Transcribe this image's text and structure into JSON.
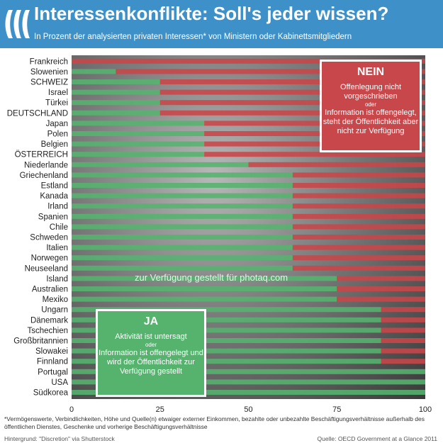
{
  "header": {
    "title": "Interessenkonflikte: Soll's jeder wissen?",
    "subtitle": "In Prozent der analysierten privaten Interessen* von Ministern oder Kabinettsmitgliedern"
  },
  "colors": {
    "ja": "#55b36e",
    "nein": "#c8474a",
    "header": "#3e91c8"
  },
  "legend": {
    "nein": {
      "title": "NEIN",
      "line1": "Offenlegung nicht vorgeschrieben",
      "oder": "oder",
      "line2": "Information ist offengelegt, steht der Öffentlichkeit aber nicht zur Verfügung"
    },
    "ja": {
      "title": "JA",
      "line1": "Aktivität ist untersagt",
      "oder": "oder",
      "line2": "Information ist offengelegt und wird der Öffentlichkeit zur Verfügung gestellt"
    }
  },
  "watermark": "zur Verfügung gestellt für photaq.com",
  "footnote": "*Vermögenswerte, Verbindlichkeiten, Höhe und Quelle(n) etwaiger externer Einkommen, bezahlte oder unbezahlte Beschäftigungsverhältnisse außerhalb des öffentlichen Dienstes, Geschenke und vorherige Beschäftigungsverhältnisse",
  "credit_background": "Hintergrund: \"Discretion\" via Shutterstock",
  "credit_source": "Quelle: OECD Government at a Glance 2011",
  "chart_data": {
    "type": "bar",
    "orientation": "horizontal",
    "stacked": true,
    "xlim": [
      0,
      100
    ],
    "xticks": [
      0,
      25,
      50,
      75,
      100
    ],
    "categories": [
      "Frankreich",
      "Slowenien",
      "SCHWEIZ",
      "Israel",
      "Türkei",
      "DEUTSCHLAND",
      "Japan",
      "Polen",
      "Belgien",
      "ÖSTERREICH",
      "Niederlande",
      "Griechenland",
      "Estland",
      "Kanada",
      "Irland",
      "Spanien",
      "Chile",
      "Schweden",
      "Italien",
      "Norwegen",
      "Neuseeland",
      "Island",
      "Australien",
      "Mexiko",
      "Ungarn",
      "Dänemark",
      "Tschechien",
      "Großbritannien",
      "Slowakei",
      "Finnland",
      "Portugal",
      "USA",
      "Südkorea"
    ],
    "series": [
      {
        "name": "JA",
        "values": [
          0,
          12.5,
          25,
          25,
          25,
          25,
          37.5,
          37.5,
          37.5,
          37.5,
          50,
          62.5,
          62.5,
          62.5,
          62.5,
          62.5,
          62.5,
          62.5,
          62.5,
          62.5,
          62.5,
          75,
          75,
          75,
          87.5,
          87.5,
          87.5,
          87.5,
          87.5,
          87.5,
          100,
          100,
          100
        ]
      },
      {
        "name": "NEIN",
        "values": [
          100,
          87.5,
          75,
          75,
          75,
          75,
          62.5,
          62.5,
          62.5,
          62.5,
          50,
          37.5,
          37.5,
          37.5,
          37.5,
          37.5,
          37.5,
          37.5,
          37.5,
          37.5,
          37.5,
          25,
          25,
          25,
          12.5,
          12.5,
          12.5,
          12.5,
          12.5,
          12.5,
          0,
          0,
          0
        ]
      }
    ]
  }
}
